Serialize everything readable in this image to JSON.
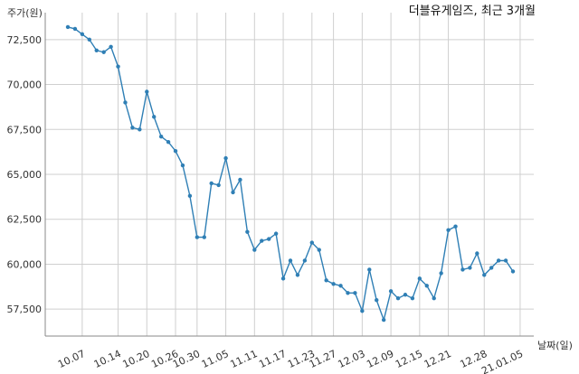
{
  "chart_data": {
    "type": "line",
    "title": "더블유게임즈, 최근 3개월",
    "ylabel": "주가(원)",
    "xlabel": "날짜(일)",
    "ylim": [
      56000,
      74000
    ],
    "yticks": [
      57500,
      60000,
      62500,
      65000,
      67500,
      70000,
      72500
    ],
    "ytick_labels": [
      "57,500",
      "60,000",
      "62,500",
      "65,000",
      "67,500",
      "70,000",
      "72,500"
    ],
    "xtick_labels": [
      "10.07",
      "10.14",
      "10.20",
      "10.26",
      "10.30",
      "11.05",
      "11.11",
      "11.17",
      "11.23",
      "11.27",
      "12.03",
      "12.09",
      "12.15",
      "12.21",
      "12.28",
      "21.01.05"
    ],
    "xtick_index": [
      2,
      7,
      11,
      15,
      18,
      22,
      26,
      30,
      34,
      37,
      41,
      45,
      49,
      53,
      58,
      63
    ],
    "grid": true,
    "color": "#2f7fb5",
    "series": [
      {
        "values": [
          73200,
          73100,
          72800,
          72500,
          71900,
          71800,
          72100,
          71000,
          69000,
          67600,
          67500,
          69600,
          68200,
          67100,
          66800,
          66300,
          65500,
          63800,
          61500,
          61500,
          64500,
          64400,
          65900,
          64000,
          64700,
          61800,
          60800,
          61300,
          61400,
          61700,
          59200,
          60200,
          59400,
          60200,
          61200,
          60800,
          59100,
          58900,
          58800,
          58400,
          58400,
          57400,
          59700,
          58000,
          56900,
          58500,
          58100,
          58300,
          58100,
          59200,
          58800,
          58100,
          59500,
          61900,
          62100,
          59700,
          59800,
          60600,
          59400,
          59800,
          60200,
          60200,
          59600
        ]
      }
    ]
  }
}
